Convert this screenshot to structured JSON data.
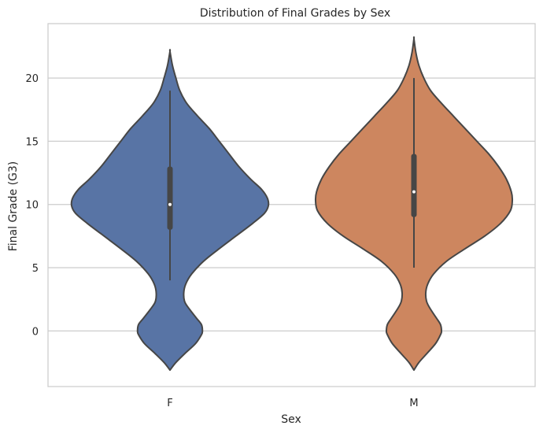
{
  "chart_data": {
    "type": "violin",
    "title": "Distribution of Final Grades by Sex",
    "xlabel": "Sex",
    "ylabel": "Final Grade (G3)",
    "categories": [
      "F",
      "M"
    ],
    "ylim": [
      -4.4,
      24.3
    ],
    "yticks": [
      0,
      5,
      10,
      15,
      20
    ],
    "grid": true,
    "colors": {
      "F": "#5874a5",
      "M": "#cd865f",
      "outline": "#464646",
      "grid": "#cccccc",
      "frame": "#cccccc"
    },
    "violins": [
      {
        "category": "F",
        "color": "#5874a5",
        "extent": [
          -3.1,
          22.1
        ],
        "density": [
          [
            -3.1,
            0.0
          ],
          [
            -2.5,
            0.06
          ],
          [
            -1.8,
            0.15
          ],
          [
            -1.0,
            0.26
          ],
          [
            -0.3,
            0.32
          ],
          [
            0.0,
            0.33
          ],
          [
            0.5,
            0.32
          ],
          [
            1.0,
            0.27
          ],
          [
            1.7,
            0.2
          ],
          [
            2.3,
            0.15
          ],
          [
            3.0,
            0.14
          ],
          [
            3.7,
            0.16
          ],
          [
            4.5,
            0.22
          ],
          [
            5.5,
            0.34
          ],
          [
            6.5,
            0.5
          ],
          [
            7.5,
            0.67
          ],
          [
            8.5,
            0.84
          ],
          [
            9.3,
            0.96
          ],
          [
            9.9,
            1.0
          ],
          [
            10.5,
            0.99
          ],
          [
            11.2,
            0.93
          ],
          [
            12.0,
            0.82
          ],
          [
            13.0,
            0.7
          ],
          [
            14.0,
            0.6
          ],
          [
            15.0,
            0.5
          ],
          [
            16.0,
            0.4
          ],
          [
            17.0,
            0.28
          ],
          [
            18.0,
            0.17
          ],
          [
            19.0,
            0.1
          ],
          [
            20.0,
            0.06
          ],
          [
            21.0,
            0.025
          ],
          [
            22.1,
            0.0
          ]
        ],
        "whisker": [
          4,
          19
        ],
        "quartiles": [
          8,
          13
        ],
        "median": 10
      },
      {
        "category": "M",
        "color": "#cd865f",
        "extent": [
          -3.1,
          23.1
        ],
        "density": [
          [
            -3.1,
            0.0
          ],
          [
            -2.5,
            0.05
          ],
          [
            -1.8,
            0.13
          ],
          [
            -1.0,
            0.22
          ],
          [
            -0.3,
            0.27
          ],
          [
            0.0,
            0.28
          ],
          [
            0.5,
            0.27
          ],
          [
            1.0,
            0.23
          ],
          [
            1.7,
            0.17
          ],
          [
            2.3,
            0.13
          ],
          [
            3.0,
            0.12
          ],
          [
            3.7,
            0.14
          ],
          [
            4.5,
            0.2
          ],
          [
            5.5,
            0.33
          ],
          [
            6.5,
            0.52
          ],
          [
            7.5,
            0.72
          ],
          [
            8.5,
            0.88
          ],
          [
            9.5,
            0.98
          ],
          [
            10.3,
            1.0
          ],
          [
            11.0,
            0.99
          ],
          [
            12.0,
            0.94
          ],
          [
            13.0,
            0.86
          ],
          [
            14.0,
            0.76
          ],
          [
            15.0,
            0.64
          ],
          [
            16.0,
            0.52
          ],
          [
            17.0,
            0.4
          ],
          [
            18.0,
            0.28
          ],
          [
            19.0,
            0.17
          ],
          [
            20.0,
            0.1
          ],
          [
            21.0,
            0.05
          ],
          [
            22.0,
            0.02
          ],
          [
            23.1,
            0.0
          ]
        ],
        "whisker": [
          5,
          20
        ],
        "quartiles": [
          9,
          14
        ],
        "median": 11
      }
    ]
  }
}
